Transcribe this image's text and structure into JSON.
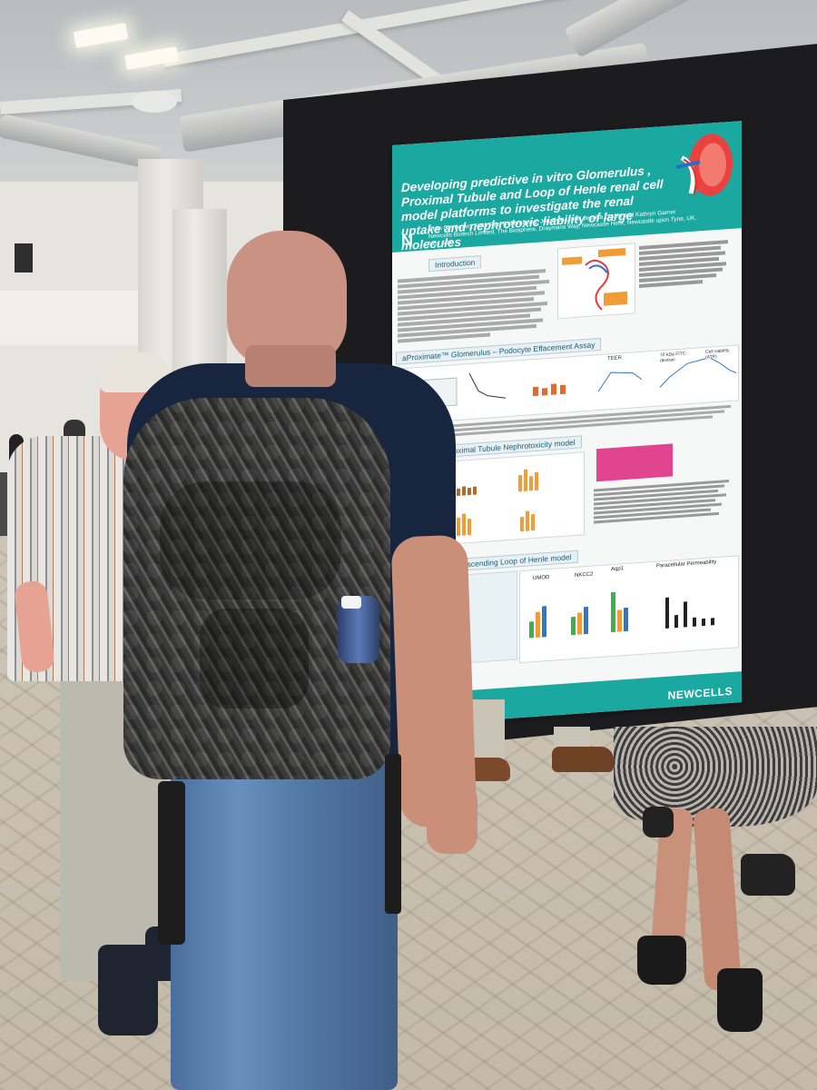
{
  "poster": {
    "title": "Developing predictive in vitro Glomerulus , Proximal Tubule and Loop of Henle renal cell model platforms to investigate the renal uptake and nephrotoxic liability of large molecules",
    "authors": "Colin D A Brown, Keith Pye, Robert Liang, Jonathon Lowe, Jessica Ogden and Kathryn Garner",
    "affiliation": "Newcells Biotech Limited, The Biosphere, Draymans Way, Newcastle Helix, Newcastle upon Tyne, UK, NE4 5BX",
    "logo_letter": "N",
    "sections": {
      "intro": "Introduction",
      "glomerulus": "aProximate™ Glomerulus – Podocyte Effacement Assay",
      "proximal": "Proximal Tubule Nephrotoxicity model",
      "loop": "Ascending Loop of Henle model"
    },
    "figure_labels": {
      "teer": "TEER",
      "fitc": "70 kDa FITC-dextran",
      "viability": "Cell viability (ATP)",
      "umod": "UMOD",
      "nkcc2": "NKCC2",
      "aqp1": "Aqp1",
      "paracellular": "Paracellular Permeability"
    },
    "brand": "NEWCELLS",
    "colors": {
      "teal": "#1aa8a0",
      "pink": "#e1458f",
      "board": "#1c1c1e"
    }
  }
}
